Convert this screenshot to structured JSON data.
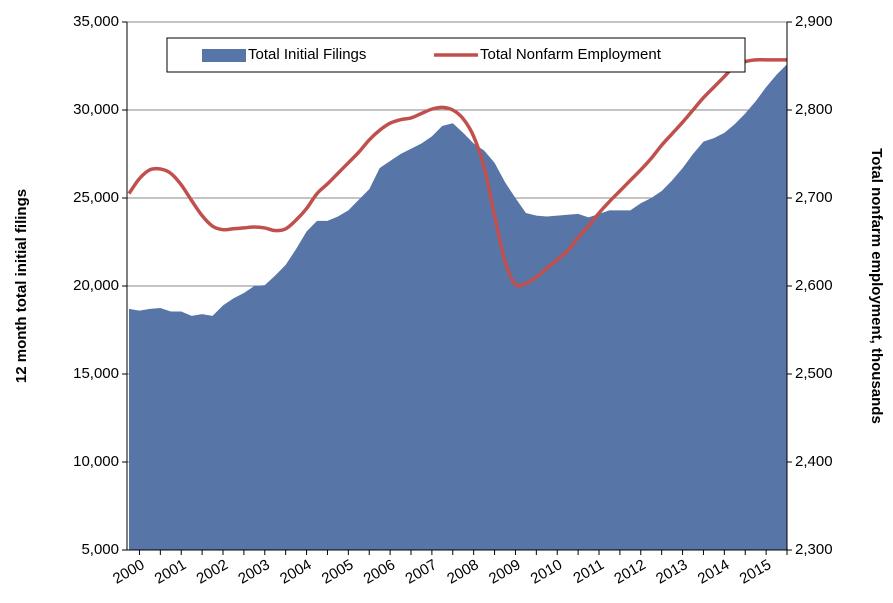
{
  "chart_data": {
    "type": "area-line",
    "ylabel": "12 month total initial filings",
    "y2label": "Total nonfarm employment, thousands",
    "categories": [
      null,
      "2000",
      null,
      null,
      null,
      "2001",
      null,
      null,
      null,
      "2002",
      null,
      null,
      null,
      "2003",
      null,
      null,
      null,
      "2004",
      null,
      null,
      null,
      "2005",
      null,
      null,
      null,
      "2006",
      null,
      null,
      null,
      "2007",
      null,
      null,
      null,
      "2008",
      null,
      null,
      null,
      "2009",
      null,
      null,
      null,
      "2010",
      null,
      null,
      null,
      "2011",
      null,
      null,
      null,
      "2012",
      null,
      null,
      null,
      "2013",
      null,
      null,
      null,
      "2014",
      null,
      null,
      null,
      "2015",
      null,
      null
    ],
    "series": [
      {
        "name": "Total Initial Filings",
        "color": "#5875a8",
        "axis": "y",
        "values": [
          18700,
          18600,
          18700,
          18750,
          18550,
          18550,
          18300,
          18400,
          18300,
          18900,
          19300,
          19600,
          20000,
          20050,
          20600,
          21200,
          22100,
          23100,
          23700,
          23700,
          23950,
          24300,
          24900,
          25500,
          26700,
          27100,
          27500,
          27800,
          28100,
          28500,
          29100,
          29250,
          28700,
          28100,
          27700,
          27000,
          25900,
          25000,
          24150,
          24000,
          23950,
          24000,
          24050,
          24100,
          23900,
          24100,
          24300,
          24300,
          24300,
          24700,
          25000,
          25400,
          26000,
          26700,
          27500,
          28200,
          28400,
          28700,
          29200,
          29800,
          30500,
          31300,
          32000,
          32600
        ]
      },
      {
        "name": "Total Nonfarm Employment",
        "color": "#c0504d",
        "axis": "y2",
        "values": [
          2705,
          2722,
          2732,
          2733,
          2728,
          2715,
          2697,
          2680,
          2668,
          2664,
          2665,
          2666,
          2667,
          2666,
          2663,
          2665,
          2675,
          2688,
          2705,
          2716,
          2728,
          2740,
          2752,
          2766,
          2777,
          2785,
          2789,
          2791,
          2796,
          2801,
          2803,
          2800,
          2790,
          2770,
          2735,
          2680,
          2628,
          2602,
          2603,
          2610,
          2620,
          2630,
          2640,
          2655,
          2668,
          2683,
          2696,
          2708,
          2720,
          2732,
          2745,
          2760,
          2773,
          2786,
          2800,
          2814,
          2826,
          2838,
          2850,
          2855,
          2857,
          2857,
          2857,
          2857
        ]
      }
    ],
    "ylim": [
      5000,
      35000
    ],
    "yticks": [
      {
        "value": 5000,
        "label": "5,000"
      },
      {
        "value": 10000,
        "label": "10,000"
      },
      {
        "value": 15000,
        "label": "15,000"
      },
      {
        "value": 20000,
        "label": "20,000"
      },
      {
        "value": 25000,
        "label": "25,000"
      },
      {
        "value": 30000,
        "label": "30,000"
      },
      {
        "value": 35000,
        "label": "35,000"
      }
    ],
    "y2lim": [
      2300,
      2900
    ],
    "y2ticks": [
      {
        "value": 2300,
        "label": "2,300"
      },
      {
        "value": 2400,
        "label": "2,400"
      },
      {
        "value": 2500,
        "label": "2,500"
      },
      {
        "value": 2600,
        "label": "2,600"
      },
      {
        "value": 2700,
        "label": "2,700"
      },
      {
        "value": 2800,
        "label": "2,800"
      },
      {
        "value": 2900,
        "label": "2,900"
      }
    ],
    "grid": true,
    "legend": "top"
  }
}
